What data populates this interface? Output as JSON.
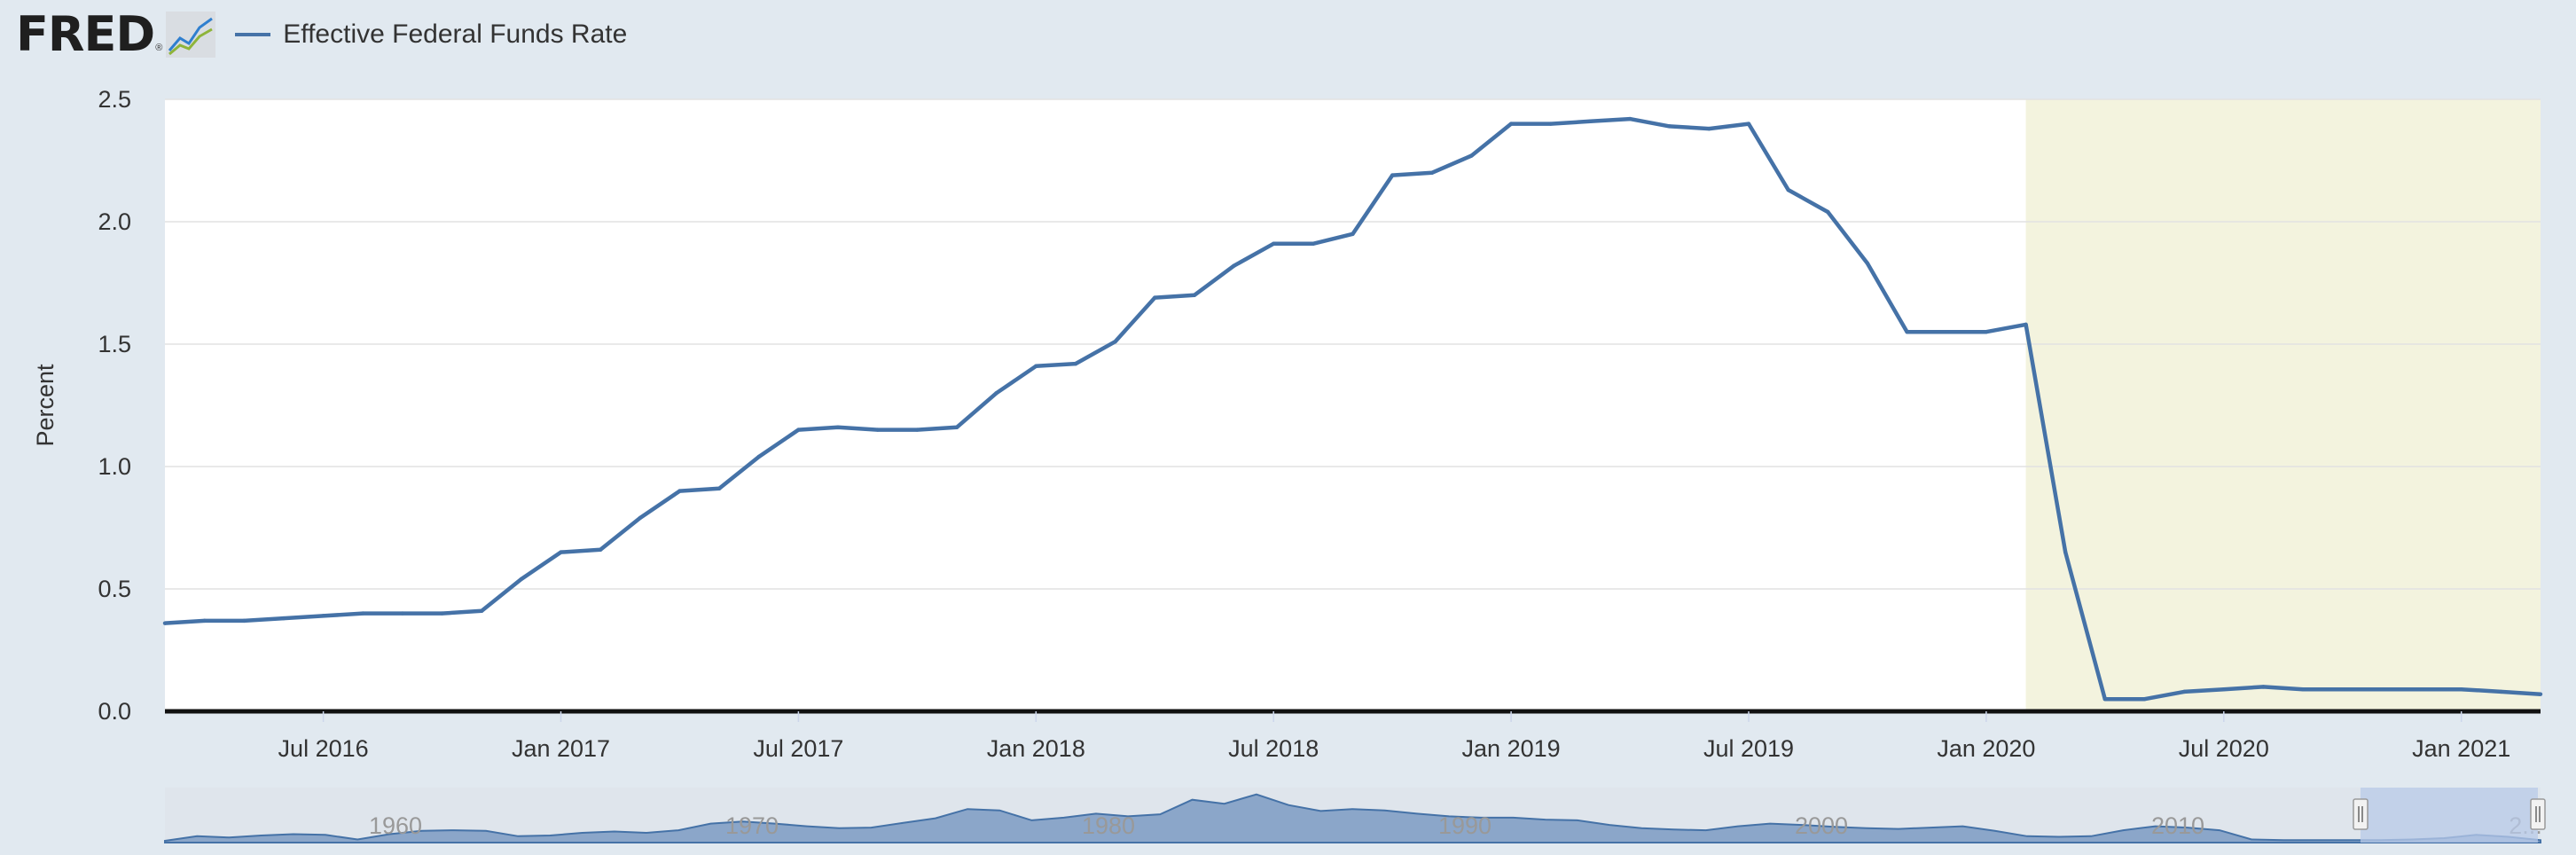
{
  "header": {
    "logo_text": "FRED",
    "logo_reg": "®",
    "legend_label": "Effective Federal Funds Rate"
  },
  "colors": {
    "line": "#4572a7",
    "recession": "#f3f3de",
    "navigator_fill": "#8ba6c9",
    "navigator_window": "#b8c9e8"
  },
  "chart_data": {
    "type": "line",
    "title": "",
    "xlabel": "",
    "ylabel": "Percent",
    "ylim": [
      0,
      2.5
    ],
    "yticks": [
      "0.0",
      "0.5",
      "1.0",
      "1.5",
      "2.0",
      "2.5"
    ],
    "xticks": [
      "Jul 2016",
      "Jan 2017",
      "Jul 2017",
      "Jan 2018",
      "Jul 2018",
      "Jan 2019",
      "Jul 2019",
      "Jan 2020",
      "Jul 2020",
      "Jan 2021"
    ],
    "xlim": [
      "2016-03",
      "2021-03"
    ],
    "grid": true,
    "legend": "top-left",
    "recession_shading": [
      "2020-02",
      "2021-03"
    ],
    "series": [
      {
        "name": "Effective Federal Funds Rate",
        "x": [
          "2016-03",
          "2016-04",
          "2016-05",
          "2016-06",
          "2016-07",
          "2016-08",
          "2016-09",
          "2016-10",
          "2016-11",
          "2016-12",
          "2017-01",
          "2017-02",
          "2017-03",
          "2017-04",
          "2017-05",
          "2017-06",
          "2017-07",
          "2017-08",
          "2017-09",
          "2017-10",
          "2017-11",
          "2017-12",
          "2018-01",
          "2018-02",
          "2018-03",
          "2018-04",
          "2018-05",
          "2018-06",
          "2018-07",
          "2018-08",
          "2018-09",
          "2018-10",
          "2018-11",
          "2018-12",
          "2019-01",
          "2019-02",
          "2019-03",
          "2019-04",
          "2019-05",
          "2019-06",
          "2019-07",
          "2019-08",
          "2019-09",
          "2019-10",
          "2019-11",
          "2019-12",
          "2020-01",
          "2020-02",
          "2020-03",
          "2020-04",
          "2020-05",
          "2020-06",
          "2020-07",
          "2020-08",
          "2020-09",
          "2020-10",
          "2020-11",
          "2020-12",
          "2021-01",
          "2021-02",
          "2021-03"
        ],
        "values": [
          0.36,
          0.37,
          0.37,
          0.38,
          0.39,
          0.4,
          0.4,
          0.4,
          0.41,
          0.54,
          0.65,
          0.66,
          0.79,
          0.9,
          0.91,
          1.04,
          1.15,
          1.16,
          1.15,
          1.15,
          1.16,
          1.3,
          1.41,
          1.42,
          1.51,
          1.69,
          1.7,
          1.82,
          1.91,
          1.91,
          1.95,
          2.19,
          2.2,
          2.27,
          2.4,
          2.4,
          2.41,
          2.42,
          2.39,
          2.38,
          2.4,
          2.13,
          2.04,
          1.83,
          1.55,
          1.55,
          1.55,
          1.58,
          0.65,
          0.05,
          0.05,
          0.08,
          0.09,
          0.1,
          0.09,
          0.09,
          0.09,
          0.09,
          0.09,
          0.08,
          0.07
        ]
      }
    ]
  },
  "navigator": {
    "labels": [
      "1960",
      "1970",
      "1980",
      "1990",
      "2000",
      "2010",
      "2..."
    ]
  }
}
